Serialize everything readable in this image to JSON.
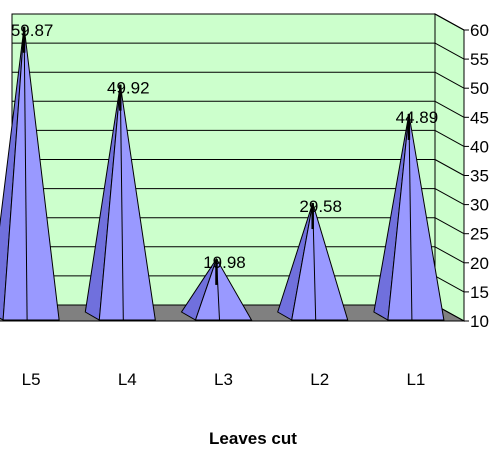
{
  "chart_data": {
    "type": "bar",
    "bar_shape": "pyramid",
    "categories": [
      "L5",
      "L4",
      "L3",
      "L2",
      "L1"
    ],
    "values": [
      59.87,
      49.92,
      19.98,
      29.58,
      44.89
    ],
    "value_labels": [
      "59.87",
      "49.92",
      "19.98",
      "29.58",
      "44.89"
    ],
    "title": "",
    "xlabel": "Leaves cut",
    "ylabel": "",
    "ylim": [
      10,
      60
    ],
    "yticks": [
      10,
      15,
      20,
      25,
      30,
      35,
      40,
      45,
      50,
      55,
      60
    ],
    "ytick_labels": [
      "10",
      "15",
      "20",
      "25",
      "30",
      "35",
      "40",
      "45",
      "50",
      "55",
      "60"
    ],
    "y_axis_side": "right",
    "grid": true,
    "legend": "none",
    "colors": {
      "wall": "#ccffcc",
      "floor": "#808080",
      "bar_front": "#9999ff",
      "bar_side": "#7070dd",
      "grid": "#000000"
    }
  }
}
